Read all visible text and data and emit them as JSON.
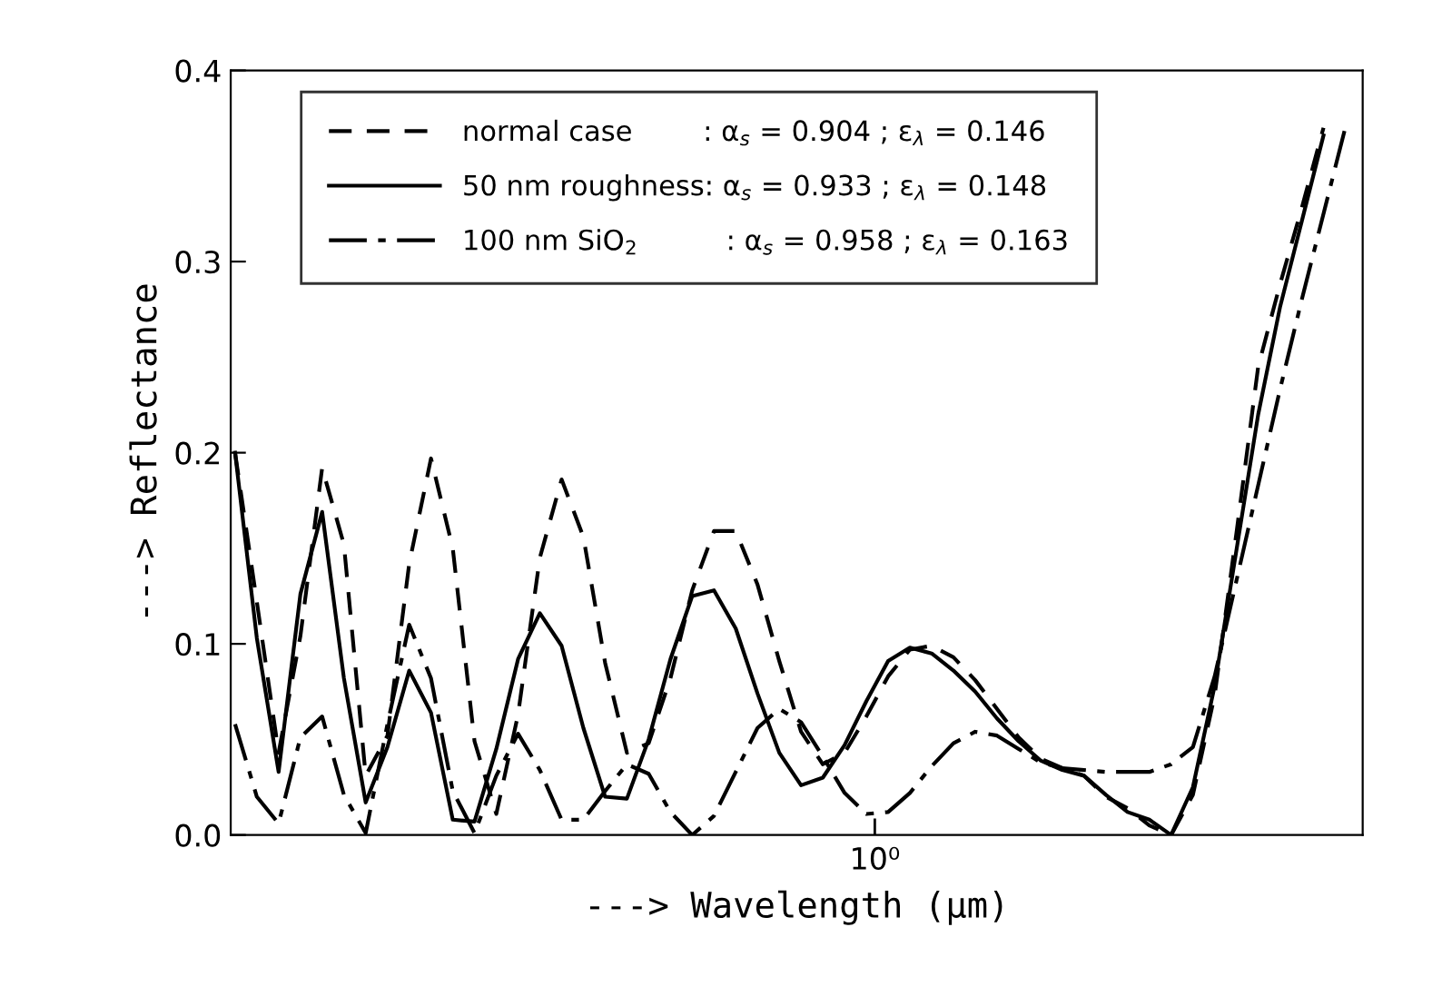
{
  "chart_data": {
    "type": "line",
    "xlabel": "---> Wavelength (μm)",
    "ylabel": "---> Reflectance",
    "categories": [
      null,
      null,
      null,
      null,
      null,
      null,
      null,
      null,
      null,
      null,
      null,
      null,
      null,
      null,
      null,
      null,
      null,
      null,
      null,
      null,
      null,
      null,
      null,
      null,
      null,
      null,
      null,
      null,
      null,
      null,
      null,
      null,
      null,
      null,
      null,
      null,
      null,
      null,
      null,
      null,
      null,
      null,
      null,
      null,
      null,
      null,
      null,
      null,
      null,
      null,
      null,
      null
    ],
    "ylim": [
      0,
      0.4
    ],
    "yticks": [
      {
        "value": 0,
        "label": "0.0"
      },
      {
        "value": 0.1,
        "label": "0.1"
      },
      {
        "value": 0.2,
        "label": "0.2"
      },
      {
        "value": 0.3,
        "label": "0.3"
      },
      {
        "value": 0.4,
        "label": "0.4"
      }
    ],
    "tick_labels": "y",
    "annotations": [
      "10⁰"
    ],
    "grid": false,
    "legend": "top left",
    "marker": "none",
    "series": [
      {
        "name": "normal case        : α$_{s}$ = 0.904 ; ε$_{λ}$ = 0.146",
        "color": "#000000",
        "line_style": "dashed",
        "values": [
          0.2,
          0.122,
          0.043,
          0.104,
          0.192,
          0.152,
          0.031,
          0.052,
          0.142,
          0.197,
          0.15,
          0.049,
          0.011,
          0.063,
          0.145,
          0.186,
          0.156,
          0.09,
          0.043,
          0.048,
          0.082,
          0.128,
          0.159,
          0.159,
          0.131,
          0.091,
          0.054,
          0.037,
          0.043,
          0.062,
          0.083,
          0.097,
          0.099,
          0.093,
          0.081,
          0.066,
          0.051,
          0.04,
          0.035,
          0.031,
          0.02,
          0.014,
          0.005,
          0.0,
          0.021,
          0.073,
          0.158,
          0.245,
          0.288,
          0.328,
          0.37,
          null
        ]
      },
      {
        "name": "50 nm roughness: α$_{s}$ = 0.933 ; ε$_{λ}$ = 0.148",
        "color": "#000000",
        "line_style": "solid",
        "values": [
          0.2,
          0.103,
          0.033,
          0.126,
          0.169,
          0.082,
          0.017,
          0.046,
          0.086,
          0.064,
          0.008,
          0.007,
          0.045,
          0.092,
          0.116,
          0.099,
          0.056,
          0.02,
          0.019,
          0.05,
          0.092,
          0.125,
          0.128,
          0.108,
          0.074,
          0.043,
          0.026,
          0.03,
          0.047,
          0.07,
          0.091,
          0.098,
          0.095,
          0.086,
          0.075,
          0.061,
          0.049,
          0.039,
          0.034,
          0.031,
          0.021,
          0.012,
          0.008,
          0.0,
          0.025,
          0.078,
          0.149,
          0.22,
          0.276,
          0.321,
          0.366,
          null
        ]
      },
      {
        "name": "100 nm SiO$_{2}$          : α$_{s}$ = 0.958 ; ε$_{λ}$ = 0.163",
        "color": "#000000",
        "line_style": "dashdot",
        "values": [
          0.058,
          0.02,
          0.006,
          0.051,
          0.062,
          0.021,
          0.001,
          0.058,
          0.11,
          0.082,
          0.023,
          0.001,
          0.031,
          0.053,
          0.034,
          0.008,
          0.008,
          0.023,
          0.037,
          0.032,
          0.012,
          0.0,
          0.01,
          0.033,
          0.056,
          0.066,
          0.059,
          0.041,
          0.022,
          0.011,
          0.012,
          0.022,
          0.036,
          0.048,
          0.054,
          0.052,
          0.045,
          0.038,
          0.035,
          0.034,
          0.033,
          0.033,
          0.033,
          0.037,
          0.046,
          0.083,
          0.133,
          0.183,
          0.233,
          0.28,
          0.325,
          0.37
        ]
      }
    ]
  }
}
